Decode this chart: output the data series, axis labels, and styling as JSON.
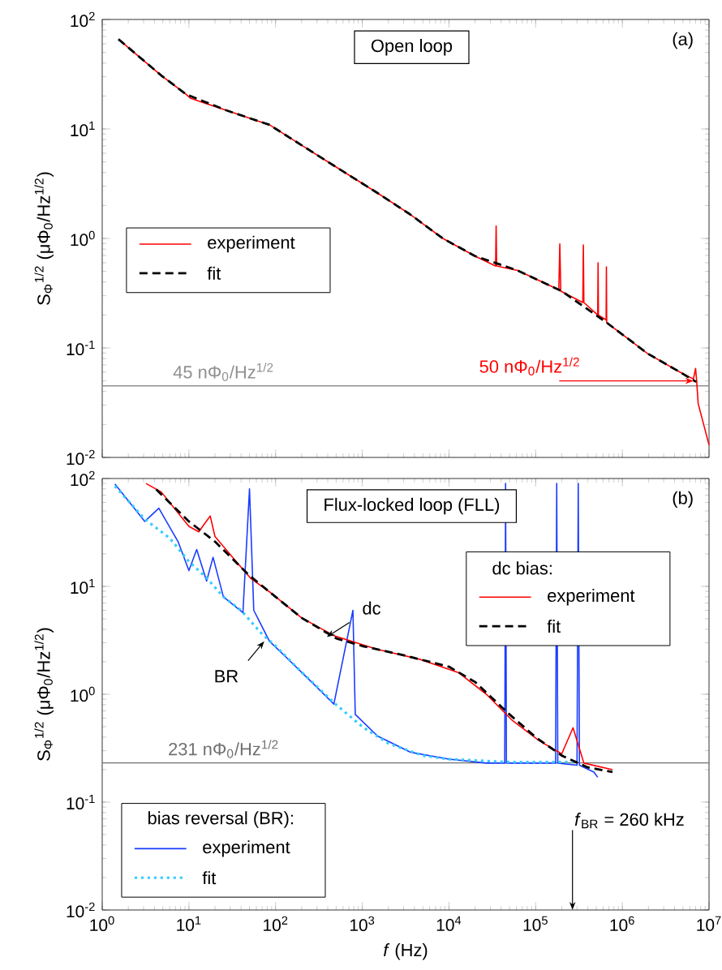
{
  "chart_data": [
    {
      "type": "line",
      "title": "Open loop",
      "ylabel": "S$_{Φ}$$^{1/2}$ (μΦ$_{0}$/Hz$^{1/2}$)",
      "xlim": [
        1,
        10000000
      ],
      "ylim": [
        0.01,
        100
      ],
      "xticks": [
        {
          "value": 1,
          "label": null
        },
        {
          "value": 10,
          "label": null
        },
        {
          "value": 100,
          "label": null
        },
        {
          "value": 1000,
          "label": null
        },
        {
          "value": 10000,
          "label": null
        },
        {
          "value": 100000,
          "label": null
        },
        {
          "value": 1000000,
          "label": null
        },
        {
          "value": 10000000,
          "label": null
        }
      ],
      "yticks": [
        {
          "value": 0.01,
          "label": "10$^{-2}$"
        },
        {
          "value": 0.1,
          "label": "10$^{-1}$"
        },
        {
          "value": 1,
          "label": "10$^{0}$"
        },
        {
          "value": 10,
          "label": "10$^{1}$"
        },
        {
          "value": 100,
          "label": "10$^{2}$"
        }
      ],
      "log": "xy",
      "tick_labels": "y",
      "legend": "left",
      "series": [
        {
          "name": "experiment",
          "color": "#ff0000",
          "line_style": "solid",
          "x": [
            1.54,
            4.8,
            9.3,
            10.5,
            27,
            85,
            200,
            475,
            1500,
            3560,
            8500,
            20000,
            34500,
            35000,
            35500,
            62000,
            185000,
            190000,
            195000,
            350000,
            355000,
            360000,
            520000,
            525000,
            530000,
            650000,
            655000,
            660000,
            1950000,
            4650000,
            6600000,
            7000000,
            7200000,
            7500000,
            10000000
          ],
          "values": [
            66,
            30.8,
            20.7,
            19,
            14.8,
            10.9,
            7.1,
            4.6,
            2.6,
            1.66,
            1.0,
            0.69,
            0.56,
            1.3,
            0.56,
            0.51,
            0.34,
            0.89,
            0.33,
            0.26,
            0.87,
            0.26,
            0.2,
            0.6,
            0.2,
            0.18,
            0.55,
            0.17,
            0.089,
            0.06,
            0.052,
            0.065,
            0.05,
            0.031,
            0.013
          ]
        },
        {
          "name": "fit",
          "color": "#000000",
          "line_style": "dashed",
          "x": [
            1.54,
            4.8,
            9.3,
            27,
            85,
            200,
            475,
            1500,
            3560,
            8500,
            20000,
            62000,
            200000,
            630000,
            1950000,
            4650000,
            7100000
          ],
          "values": [
            66,
            30.8,
            20.7,
            14.8,
            10.9,
            7.1,
            4.6,
            2.6,
            1.66,
            1.0,
            0.69,
            0.51,
            0.33,
            0.175,
            0.089,
            0.06,
            0.049
          ]
        }
      ],
      "ref_lines": [
        {
          "axis": "y",
          "value": 0.045,
          "label": "45 nΦ$_{0}$/Hz$^{1/2}$",
          "color": "#909090"
        }
      ],
      "annotations": [
        "(a)",
        {
          "text": "50 nΦ$_{0}$/Hz$^{1/2}$",
          "x": 6600000,
          "y": 0.05
        }
      ]
    },
    {
      "type": "line",
      "title": "Flux-locked loop (FLL)",
      "xlabel": "*f* (Hz)",
      "ylabel": "S$_{Φ}$$^{1/2}$ (μΦ$_{0}$/Hz$^{1/2}$)",
      "xlim": [
        1,
        10000000
      ],
      "ylim": [
        0.01,
        100
      ],
      "xticks": [
        {
          "value": 1,
          "label": "10$^{0}$"
        },
        {
          "value": 10,
          "label": "10$^{1}$"
        },
        {
          "value": 100,
          "label": "10$^{2}$"
        },
        {
          "value": 1000,
          "label": "10$^{3}$"
        },
        {
          "value": 10000,
          "label": "10$^{4}$"
        },
        {
          "value": 100000,
          "label": "10$^{5}$"
        },
        {
          "value": 1000000,
          "label": "10$^{6}$"
        },
        {
          "value": 10000000,
          "label": "10$^{7}$"
        }
      ],
      "yticks": [
        {
          "value": 0.01,
          "label": "10$^{-2}$"
        },
        {
          "value": 0.1,
          "label": "10$^{-1}$"
        },
        {
          "value": 1,
          "label": "10$^{0}$"
        },
        {
          "value": 10,
          "label": "10$^{1}$"
        },
        {
          "value": 100,
          "label": "10$^{2}$"
        }
      ],
      "log": "xy",
      "legend": "right",
      "legend_title": "dc bias:",
      "series": [
        {
          "name": "experiment",
          "color": "#1a3cff",
          "line_style": "solid",
          "x": [
            1.4,
            3.1,
            4.5,
            7.5,
            10,
            12.3,
            16,
            19,
            25,
            42,
            50,
            56,
            85,
            150,
            270,
            470,
            780,
            830,
            1500,
            3600,
            10000,
            27000,
            44000,
            45000,
            46000,
            110000,
            170000,
            175000,
            180000,
            300000,
            310000,
            320000,
            470000,
            520000
          ],
          "values": [
            89,
            40,
            53,
            26,
            14,
            22,
            11.2,
            18.6,
            8,
            5.7,
            80,
            6,
            3.1,
            2.0,
            1.26,
            0.81,
            6.0,
            0.65,
            0.41,
            0.29,
            0.25,
            0.23,
            0.23,
            90,
            0.23,
            0.23,
            0.23,
            90,
            0.23,
            0.22,
            90,
            0.22,
            0.19,
            0.17
          ]
        },
        {
          "name": "fit",
          "color": "#33ccff",
          "line_style": "dotted",
          "x": [
            1.4,
            3.1,
            6,
            10,
            16,
            25,
            40,
            70,
            100,
            200,
            500,
            1000,
            2000,
            5000,
            10000,
            50000,
            270000
          ],
          "values": [
            85,
            42,
            28,
            17,
            12,
            8,
            6,
            3.6,
            2.8,
            1.6,
            0.8,
            0.5,
            0.35,
            0.27,
            0.25,
            0.235,
            0.235
          ]
        },
        {
          "name": "experiment",
          "color": "#ff0000",
          "line_style": "solid",
          "x": [
            3.2,
            4.8,
            10,
            13,
            17.6,
            20,
            36,
            52,
            85,
            200,
            470,
            1500,
            4700,
            13000,
            27000,
            54000,
            110000,
            200000,
            270000,
            360000,
            770000
          ],
          "values": [
            90,
            75,
            36,
            32,
            45,
            29,
            16.6,
            11.8,
            8.9,
            5.1,
            3.5,
            2.6,
            2.1,
            1.58,
            1.0,
            0.57,
            0.37,
            0.28,
            0.49,
            0.23,
            0.2
          ]
        },
        {
          "name": "fit",
          "color": "#000000",
          "line_style": "dashed",
          "x": [
            4.2,
            10,
            20,
            50,
            100,
            200,
            500,
            1000,
            3000,
            10000,
            20000,
            50000,
            100000,
            200000,
            400000,
            770000
          ],
          "values": [
            79,
            40,
            26,
            12.6,
            8,
            5.1,
            3.3,
            2.8,
            2.3,
            1.8,
            1.3,
            0.65,
            0.4,
            0.27,
            0.21,
            0.19
          ]
        }
      ],
      "ref_lines": [
        {
          "axis": "y",
          "value": 0.231,
          "label": "231 nΦ$_{0}$/Hz$^{1/2}$",
          "color": "#707070"
        }
      ],
      "annotations": [
        "(b)",
        "bias reversal (BR):",
        "*f*$_{BR}$ = 260 kHz",
        {
          "text": "dc",
          "x": 390,
          "y": 3.4
        },
        {
          "text": "BR",
          "x": 74,
          "y": 3.1
        }
      ]
    }
  ]
}
